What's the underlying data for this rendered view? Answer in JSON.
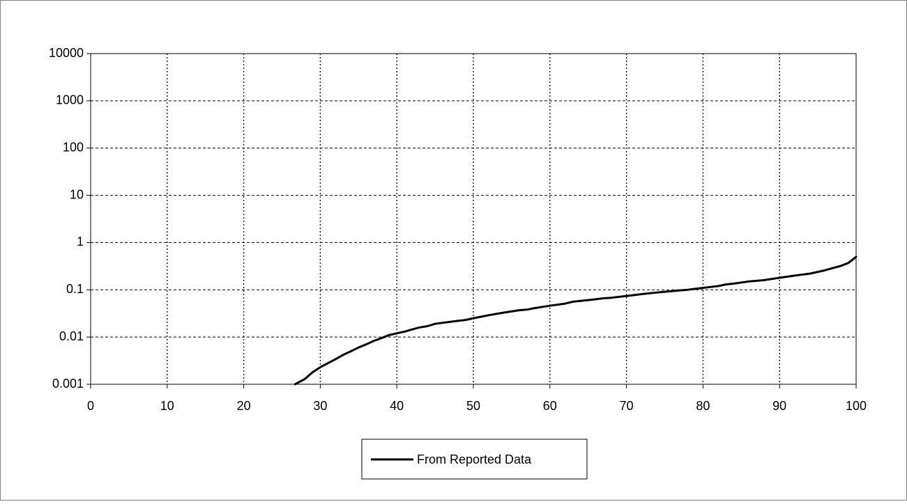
{
  "chart_data": {
    "type": "line",
    "x_axis": {
      "scale": "linear",
      "range": [
        0,
        100
      ],
      "ticks": [
        0,
        10,
        20,
        30,
        40,
        50,
        60,
        70,
        80,
        90,
        100
      ],
      "tick_labels": [
        "0",
        "10",
        "20",
        "30",
        "40",
        "50",
        "60",
        "70",
        "80",
        "90",
        "100"
      ],
      "grid": true,
      "grid_style": "dotted"
    },
    "y_axis": {
      "scale": "log",
      "range": [
        0.001,
        10000
      ],
      "ticks": [
        0.001,
        0.01,
        0.1,
        1,
        10,
        100,
        1000,
        10000
      ],
      "tick_labels": [
        "0.001",
        "0.01",
        "0.1",
        "1",
        "10",
        "100",
        "1000",
        "10000"
      ],
      "grid": true,
      "grid_style": "dashed"
    },
    "legend": {
      "position": "bottom"
    },
    "series": [
      {
        "name": "From Reported Data",
        "color": "#000000",
        "x": [
          26.7,
          28,
          29,
          30,
          31,
          32,
          33,
          34,
          35,
          36,
          37,
          38,
          39,
          40,
          41,
          42,
          43,
          44,
          45,
          46,
          47,
          48,
          49,
          50,
          52,
          54,
          56,
          57,
          58,
          60,
          62,
          63,
          64,
          66,
          67,
          68,
          70,
          72,
          74,
          76,
          78,
          80,
          82,
          83,
          84,
          86,
          87,
          88,
          90,
          92,
          94,
          96,
          97,
          98,
          99,
          100
        ],
        "y": [
          0.001,
          0.0013,
          0.0018,
          0.0023,
          0.0028,
          0.0034,
          0.0042,
          0.005,
          0.006,
          0.007,
          0.0083,
          0.0095,
          0.011,
          0.012,
          0.013,
          0.0145,
          0.016,
          0.017,
          0.019,
          0.02,
          0.021,
          0.022,
          0.023,
          0.025,
          0.029,
          0.033,
          0.037,
          0.038,
          0.041,
          0.046,
          0.051,
          0.056,
          0.058,
          0.063,
          0.066,
          0.068,
          0.074,
          0.081,
          0.088,
          0.094,
          0.1,
          0.11,
          0.12,
          0.13,
          0.135,
          0.15,
          0.155,
          0.16,
          0.18,
          0.2,
          0.22,
          0.26,
          0.29,
          0.32,
          0.37,
          0.5
        ]
      }
    ]
  }
}
